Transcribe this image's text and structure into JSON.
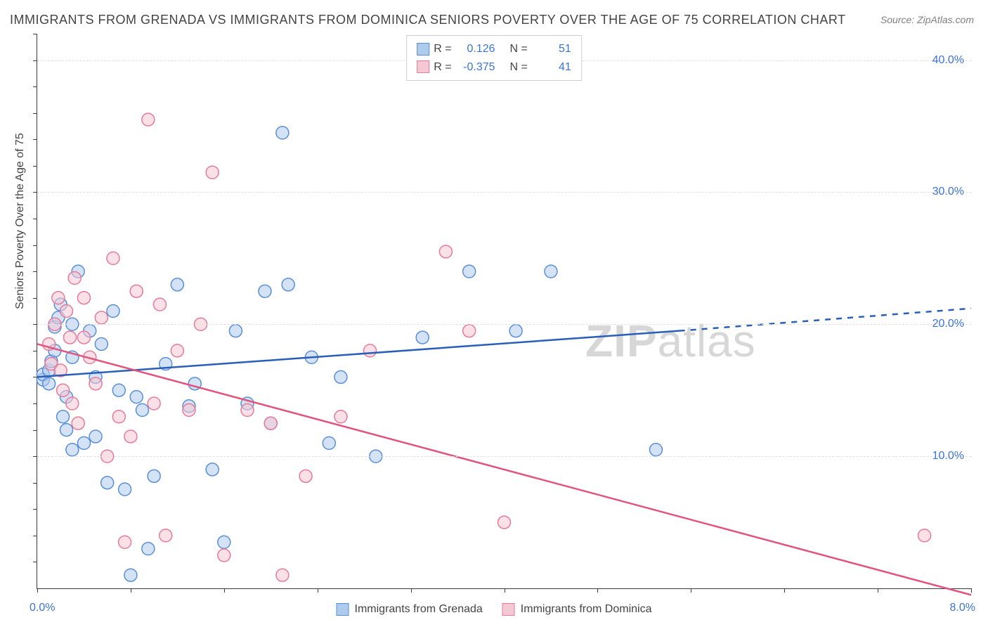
{
  "title": "IMMIGRANTS FROM GRENADA VS IMMIGRANTS FROM DOMINICA SENIORS POVERTY OVER THE AGE OF 75 CORRELATION CHART",
  "source": "Source: ZipAtlas.com",
  "watermark_bold": "ZIP",
  "watermark_light": "atlas",
  "y_axis_label": "Seniors Poverty Over the Age of 75",
  "x_left_label": "0.0%",
  "x_right_label": "8.0%",
  "top_legend": {
    "rows": [
      {
        "swatch_fill": "#aecbed",
        "swatch_stroke": "#5a8fd6",
        "r_label": "R =",
        "r_value": "0.126",
        "n_label": "N =",
        "n_value": "51"
      },
      {
        "swatch_fill": "#f5c9d4",
        "swatch_stroke": "#e77a9a",
        "r_label": "R =",
        "r_value": "-0.375",
        "n_label": "N =",
        "n_value": "41"
      }
    ]
  },
  "bottom_legend": {
    "items": [
      {
        "swatch_fill": "#aecbed",
        "swatch_stroke": "#5a8fd6",
        "label": "Immigrants from Grenada"
      },
      {
        "swatch_fill": "#f5c9d4",
        "swatch_stroke": "#e77a9a",
        "label": "Immigrants from Dominica"
      }
    ]
  },
  "chart": {
    "type": "scatter",
    "xlim": [
      0,
      8
    ],
    "ylim": [
      0,
      42
    ],
    "grid_y": [
      10,
      20,
      30,
      40
    ],
    "y_ticks": [
      {
        "v": 10,
        "label": "10.0%"
      },
      {
        "v": 20,
        "label": "20.0%"
      },
      {
        "v": 30,
        "label": "30.0%"
      },
      {
        "v": 40,
        "label": "40.0%"
      }
    ],
    "x_tick_positions": [
      0,
      0.8,
      1.6,
      2.4,
      3.2,
      4.0,
      4.8,
      5.6,
      6.4,
      7.2,
      8.0
    ],
    "y_tick_minor": [
      2,
      4,
      6,
      8,
      10,
      12,
      14,
      16,
      18,
      20,
      22,
      24,
      26,
      28,
      30,
      32,
      34,
      36,
      38,
      40,
      42
    ],
    "grid_color": "#e0e0e0",
    "background_color": "#ffffff",
    "marker_radius": 9,
    "marker_stroke_width": 1.5,
    "series": [
      {
        "name": "Immigrants from Grenada",
        "fill": "rgba(174,203,237,0.55)",
        "stroke": "#5a8fd6",
        "points": [
          [
            0.05,
            15.8
          ],
          [
            0.05,
            16.2
          ],
          [
            0.1,
            15.5
          ],
          [
            0.1,
            16.5
          ],
          [
            0.12,
            17.2
          ],
          [
            0.15,
            18.0
          ],
          [
            0.15,
            19.8
          ],
          [
            0.18,
            20.5
          ],
          [
            0.2,
            21.5
          ],
          [
            0.22,
            13.0
          ],
          [
            0.25,
            14.5
          ],
          [
            0.3,
            20.0
          ],
          [
            0.3,
            10.5
          ],
          [
            0.35,
            24.0
          ],
          [
            0.4,
            11.0
          ],
          [
            0.45,
            19.5
          ],
          [
            0.5,
            16.0
          ],
          [
            0.55,
            18.5
          ],
          [
            0.6,
            8.0
          ],
          [
            0.65,
            21.0
          ],
          [
            0.7,
            15.0
          ],
          [
            0.75,
            7.5
          ],
          [
            0.8,
            1.0
          ],
          [
            0.85,
            14.5
          ],
          [
            0.9,
            13.5
          ],
          [
            0.95,
            3.0
          ],
          [
            1.0,
            8.5
          ],
          [
            1.1,
            17.0
          ],
          [
            1.2,
            23.0
          ],
          [
            1.3,
            13.8
          ],
          [
            1.35,
            15.5
          ],
          [
            1.5,
            9.0
          ],
          [
            1.6,
            3.5
          ],
          [
            1.7,
            19.5
          ],
          [
            1.8,
            14.0
          ],
          [
            1.95,
            22.5
          ],
          [
            2.0,
            12.5
          ],
          [
            2.1,
            34.5
          ],
          [
            2.15,
            23.0
          ],
          [
            2.35,
            17.5
          ],
          [
            2.5,
            11.0
          ],
          [
            2.6,
            16.0
          ],
          [
            2.9,
            10.0
          ],
          [
            3.3,
            19.0
          ],
          [
            3.7,
            24.0
          ],
          [
            4.1,
            19.5
          ],
          [
            4.4,
            24.0
          ],
          [
            5.3,
            10.5
          ],
          [
            0.25,
            12.0
          ],
          [
            0.5,
            11.5
          ],
          [
            0.3,
            17.5
          ]
        ],
        "trend": {
          "x1": 0,
          "y1": 16.0,
          "x2": 5.5,
          "y2": 19.5,
          "x3": 8,
          "y3": 21.2,
          "solid_color": "#2a5fb8",
          "dash_color": "#2a5fb8",
          "width": 2.5
        }
      },
      {
        "name": "Immigrants from Dominica",
        "fill": "rgba(245,201,212,0.55)",
        "stroke": "#e77a9a",
        "points": [
          [
            0.1,
            18.5
          ],
          [
            0.12,
            17.0
          ],
          [
            0.15,
            20.0
          ],
          [
            0.18,
            22.0
          ],
          [
            0.2,
            16.5
          ],
          [
            0.22,
            15.0
          ],
          [
            0.25,
            21.0
          ],
          [
            0.28,
            19.0
          ],
          [
            0.3,
            14.0
          ],
          [
            0.32,
            23.5
          ],
          [
            0.35,
            12.5
          ],
          [
            0.4,
            22.0
          ],
          [
            0.45,
            17.5
          ],
          [
            0.5,
            15.5
          ],
          [
            0.55,
            20.5
          ],
          [
            0.6,
            10.0
          ],
          [
            0.65,
            25.0
          ],
          [
            0.7,
            13.0
          ],
          [
            0.75,
            3.5
          ],
          [
            0.8,
            11.5
          ],
          [
            0.85,
            22.5
          ],
          [
            0.95,
            35.5
          ],
          [
            1.0,
            14.0
          ],
          [
            1.05,
            21.5
          ],
          [
            1.1,
            4.0
          ],
          [
            1.2,
            18.0
          ],
          [
            1.3,
            13.5
          ],
          [
            1.4,
            20.0
          ],
          [
            1.5,
            31.5
          ],
          [
            1.6,
            2.5
          ],
          [
            1.8,
            13.5
          ],
          [
            2.0,
            12.5
          ],
          [
            2.1,
            1.0
          ],
          [
            2.3,
            8.5
          ],
          [
            2.6,
            13.0
          ],
          [
            2.85,
            18.0
          ],
          [
            3.5,
            25.5
          ],
          [
            3.7,
            19.5
          ],
          [
            4.0,
            5.0
          ],
          [
            7.6,
            4.0
          ],
          [
            0.4,
            19.0
          ]
        ],
        "trend": {
          "x1": 0,
          "y1": 18.5,
          "x2": 8,
          "y2": -0.5,
          "solid_color": "#e0557d",
          "width": 2.5
        }
      }
    ]
  }
}
